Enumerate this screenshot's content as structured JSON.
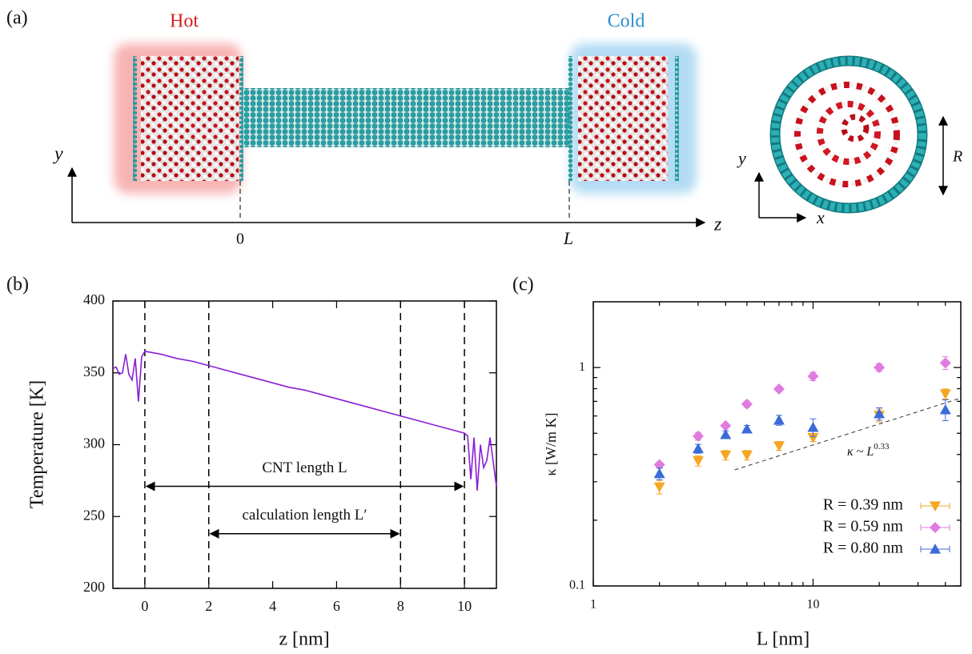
{
  "panel_a": {
    "label": "(a)",
    "hot": "Hot",
    "cold": "Cold",
    "axis_y": "y",
    "axis_z": "z",
    "origin": "0",
    "length": "L",
    "inset_y": "y",
    "inset_x": "x",
    "radius": "R"
  },
  "chart_data": [
    {
      "type": "line",
      "label": "(b)",
      "xlabel": "z [nm]",
      "ylabel": "Temperature [K]",
      "xlim": [
        -1,
        11
      ],
      "ylim": [
        200,
        400
      ],
      "xticks": [
        0,
        2,
        4,
        6,
        8,
        10
      ],
      "yticks": [
        200,
        250,
        300,
        350,
        400
      ],
      "color": "#8a1fd6",
      "x": [
        -1,
        -0.9,
        -0.8,
        -0.7,
        -0.6,
        -0.5,
        -0.4,
        -0.3,
        -0.2,
        -0.1,
        0,
        0.5,
        1,
        1.5,
        2,
        2.5,
        3,
        3.5,
        4,
        4.5,
        5,
        5.5,
        6,
        6.5,
        7,
        7.5,
        8,
        8.5,
        9,
        9.5,
        10,
        10.1,
        10.2,
        10.3,
        10.4,
        10.5,
        10.6,
        10.7,
        10.8,
        10.9,
        11
      ],
      "values": [
        353,
        354,
        349,
        350,
        363,
        349,
        345,
        360,
        330,
        361,
        365,
        363,
        360,
        358,
        355,
        352,
        349,
        346,
        343,
        340,
        338,
        335,
        332,
        329,
        326,
        323,
        320,
        317,
        314,
        311,
        308,
        306,
        276,
        305,
        268,
        300,
        284,
        289,
        305,
        288,
        271
      ],
      "vlines": [
        0,
        2,
        8,
        10
      ],
      "annotations": [
        {
          "text": "CNT length L",
          "x": [
            0,
            10
          ],
          "y": 271
        },
        {
          "text": "calculation length L′",
          "x": [
            2,
            8
          ],
          "y": 238
        }
      ]
    },
    {
      "type": "scatter",
      "label": "(c)",
      "xlabel": "L [nm]",
      "ylabel": "κ [W/m K]",
      "log_x": true,
      "log_y": true,
      "xlim": [
        1,
        47
      ],
      "ylim": [
        0.1,
        2
      ],
      "xticks": [
        1,
        10
      ],
      "yticks": [
        0.1,
        1
      ],
      "xminorticks": [
        2,
        3,
        4,
        5,
        6,
        7,
        8,
        9,
        20,
        30,
        40
      ],
      "yminorticks": [
        0.2,
        0.3,
        0.4,
        0.5,
        0.6,
        0.7,
        0.8,
        0.9
      ],
      "x": [
        2,
        3,
        4,
        5,
        7,
        10,
        20,
        40
      ],
      "series": [
        {
          "name": "R = 0.39 nm",
          "color": "#f5a623",
          "marker": "triangle-down",
          "values": [
            0.284,
            0.374,
            0.397,
            0.397,
            0.438,
            0.478,
            0.604,
            0.758
          ],
          "errors": [
            0.02,
            0.02,
            0.02,
            0.02,
            0.02,
            0.02,
            0.04,
            0.04
          ]
        },
        {
          "name": "R = 0.59 nm",
          "color": "#e07be0",
          "marker": "diamond",
          "values": [
            0.359,
            0.485,
            0.542,
            0.68,
            0.797,
            0.912,
            1.0,
            1.05
          ],
          "errors": [
            0.01,
            0.02,
            0.01,
            0.02,
            0.02,
            0.04,
            0.04,
            0.07
          ]
        },
        {
          "name": "R = 0.80 nm",
          "color": "#3c6bd8",
          "marker": "triangle-up",
          "values": [
            0.327,
            0.425,
            0.493,
            0.523,
            0.574,
            0.532,
            0.614,
            0.641
          ],
          "errors": [
            0.02,
            0.02,
            0.02,
            0.02,
            0.03,
            0.05,
            0.04,
            0.07
          ]
        }
      ],
      "fit": {
        "x": [
          4.4,
          46
        ],
        "values": [
          0.34,
          0.72
        ],
        "label": "κ ~ L",
        "exponent": "0.33"
      },
      "legend": "lower right"
    }
  ]
}
